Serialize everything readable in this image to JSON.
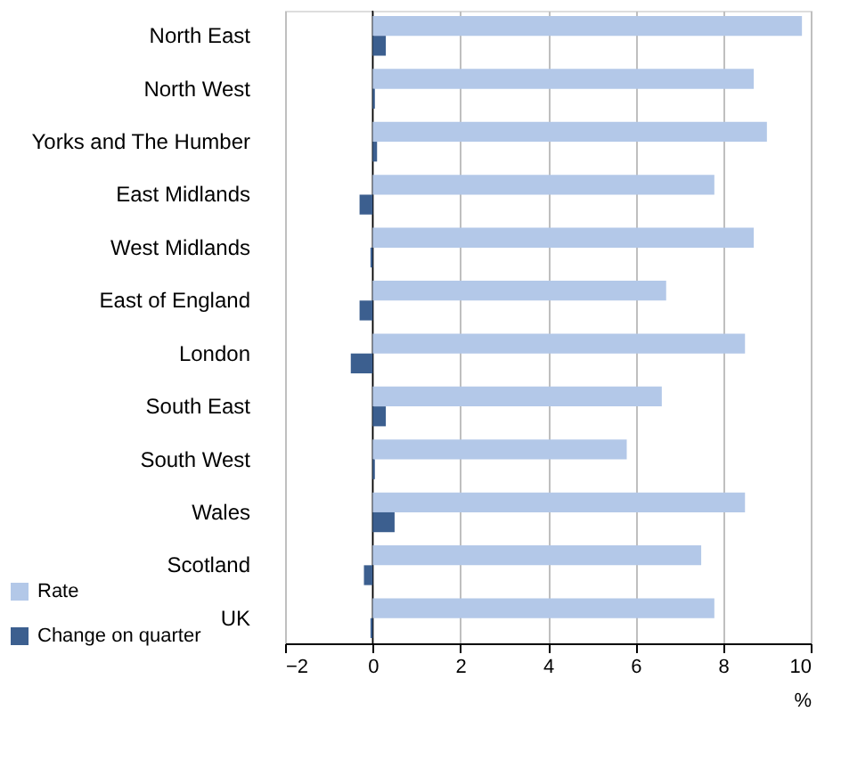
{
  "chart_data": {
    "type": "bar",
    "orientation": "horizontal",
    "categories": [
      "North East",
      "North West",
      "Yorks and The Humber",
      "East Midlands",
      "West Midlands",
      "East of England",
      "London",
      "South East",
      "South West",
      "Wales",
      "Scotland",
      "UK"
    ],
    "series": [
      {
        "name": "Rate",
        "color": "#b3c8e8",
        "values": [
          9.8,
          8.7,
          9.0,
          7.8,
          8.7,
          6.7,
          8.5,
          6.6,
          5.8,
          8.5,
          7.5,
          7.8
        ]
      },
      {
        "name": "Change on quarter",
        "color": "#3c5f8f",
        "values": [
          0.3,
          0.05,
          0.1,
          -0.3,
          -0.05,
          -0.3,
          -0.5,
          0.3,
          0.05,
          0.5,
          -0.2,
          -0.05
        ]
      }
    ],
    "xlim": [
      -2,
      10
    ],
    "xticks": [
      -2,
      0,
      2,
      4,
      6,
      8,
      10
    ],
    "xlabel": "%",
    "grid": "x",
    "legend": "bottom left"
  }
}
